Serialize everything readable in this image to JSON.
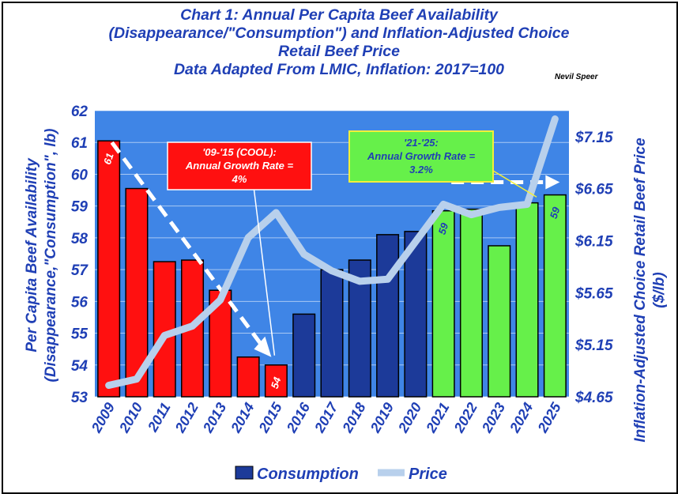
{
  "chart_data": {
    "type": "bar",
    "title_lines": [
      "Chart 1:  Annual Per Capita Beef Availability",
      "(Disappearance/\"Consumption\") and Inflation-Adjusted Choice",
      "Retail Beef Price",
      "Data Adapted From LMIC, Inflation: 2017=100"
    ],
    "author": "Nevil Speer",
    "ylabel_left_lines": [
      "Per Capita Beef Availability",
      "(Disappearance,\"Consumption\", lb)"
    ],
    "ylabel_right_lines": [
      "Inflation-Adjusted Choice Retail Beef Price",
      "($/lb)"
    ],
    "categories": [
      "2009",
      "2010",
      "2011",
      "2012",
      "2013",
      "2014",
      "2015",
      "2016",
      "2017",
      "2018",
      "2019",
      "2020",
      "2021",
      "2022",
      "2023",
      "2024",
      "2025"
    ],
    "ylim_left": [
      53,
      62
    ],
    "yticks_left": [
      "53",
      "54",
      "55",
      "56",
      "57",
      "58",
      "59",
      "60",
      "61",
      "62"
    ],
    "ylim_right": [
      4.65,
      7.4
    ],
    "yticks_right": [
      "$4.65",
      "$5.15",
      "$5.65",
      "$6.15",
      "$6.65",
      "$7.15"
    ],
    "yticks_right_values": [
      4.65,
      5.15,
      5.65,
      6.15,
      6.65,
      7.15
    ],
    "series": [
      {
        "name": "Consumption",
        "kind": "bar",
        "values": [
          61.05,
          59.55,
          57.25,
          57.3,
          56.35,
          54.25,
          54.0,
          55.6,
          57.0,
          57.3,
          58.1,
          58.2,
          58.85,
          58.9,
          57.75,
          59.1,
          59.35
        ],
        "colors": [
          "#ff1010",
          "#ff1010",
          "#ff1010",
          "#ff1010",
          "#ff1010",
          "#ff1010",
          "#ff1010",
          "#1c3a99",
          "#1c3a99",
          "#1c3a99",
          "#1c3a99",
          "#1c3a99",
          "#66f04a",
          "#66f04a",
          "#66f04a",
          "#66f04a",
          "#66f04a"
        ]
      },
      {
        "name": "Price",
        "kind": "line",
        "color": "#b8d0ec",
        "values": [
          4.76,
          4.82,
          5.24,
          5.33,
          5.58,
          6.18,
          6.42,
          6.02,
          5.86,
          5.76,
          5.78,
          6.14,
          6.5,
          6.4,
          6.47,
          6.5,
          7.32
        ]
      }
    ],
    "data_labels": [
      {
        "index": 0,
        "text": "61"
      },
      {
        "index": 6,
        "text": "54"
      },
      {
        "index": 12,
        "text": "59"
      },
      {
        "index": 16,
        "text": "59"
      }
    ],
    "annotations": [
      {
        "id": "cool",
        "lines": [
          "'09-'15 (COOL):",
          "Annual Growth Rate =",
          "4%"
        ],
        "fill": "#ff1010",
        "text_color": "#ffffff"
      },
      {
        "id": "recent",
        "lines": [
          "'21-'25:",
          "Annual Growth Rate =",
          "3.2%"
        ],
        "fill": "#66f04a",
        "text_color": "#1f3fb5"
      }
    ],
    "legend": {
      "position": "bottom",
      "items": [
        {
          "label": "Consumption",
          "color": "#1c3a99"
        },
        {
          "label": "Price",
          "color": "#b8d0ec"
        }
      ]
    },
    "grid": true,
    "plot_background": "#3f85e6"
  }
}
